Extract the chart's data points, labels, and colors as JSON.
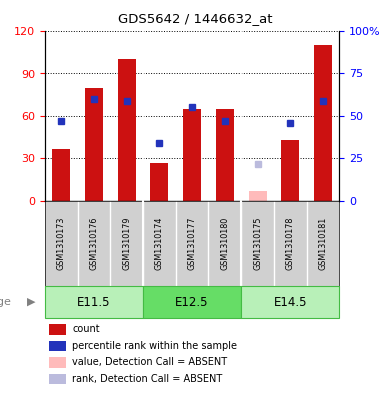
{
  "title": "GDS5642 / 1446632_at",
  "samples": [
    "GSM1310173",
    "GSM1310176",
    "GSM1310179",
    "GSM1310174",
    "GSM1310177",
    "GSM1310180",
    "GSM1310175",
    "GSM1310178",
    "GSM1310181"
  ],
  "age_groups": [
    {
      "label": "E11.5",
      "start": 0,
      "end": 3
    },
    {
      "label": "E12.5",
      "start": 3,
      "end": 6
    },
    {
      "label": "E14.5",
      "start": 6,
      "end": 9
    }
  ],
  "count_values": [
    37,
    80,
    100,
    27,
    65,
    65,
    0,
    43,
    110
  ],
  "rank_values": [
    47,
    60,
    59,
    34,
    55,
    47,
    0,
    46,
    59
  ],
  "absent_value": [
    null,
    null,
    null,
    null,
    null,
    null,
    7,
    null,
    null
  ],
  "absent_rank": [
    null,
    null,
    null,
    null,
    null,
    null,
    22,
    null,
    null
  ],
  "count_absent": [
    false,
    false,
    false,
    false,
    false,
    false,
    true,
    false,
    false
  ],
  "ylim_left": [
    0,
    120
  ],
  "ylim_right": [
    0,
    100
  ],
  "yticks_left": [
    0,
    30,
    60,
    90,
    120
  ],
  "ytick_labels_left": [
    "0",
    "30",
    "60",
    "90",
    "120"
  ],
  "yticks_right": [
    0,
    25,
    50,
    75,
    100
  ],
  "ytick_labels_right": [
    "0",
    "25",
    "50",
    "75",
    "100%"
  ],
  "bar_color": "#cc1111",
  "rank_color": "#2233bb",
  "absent_bar_color": "#ffbbbb",
  "absent_rank_color": "#bbbbdd",
  "sample_bg_color": "#d0d0d0",
  "age_colors": [
    "#b8f0b8",
    "#66dd66",
    "#b8f0b8"
  ],
  "age_border_color": "#44bb44",
  "legend_items": [
    {
      "color": "#cc1111",
      "label": "count"
    },
    {
      "color": "#2233bb",
      "label": "percentile rank within the sample"
    },
    {
      "color": "#ffbbbb",
      "label": "value, Detection Call = ABSENT"
    },
    {
      "color": "#bbbbdd",
      "label": "rank, Detection Call = ABSENT"
    }
  ]
}
